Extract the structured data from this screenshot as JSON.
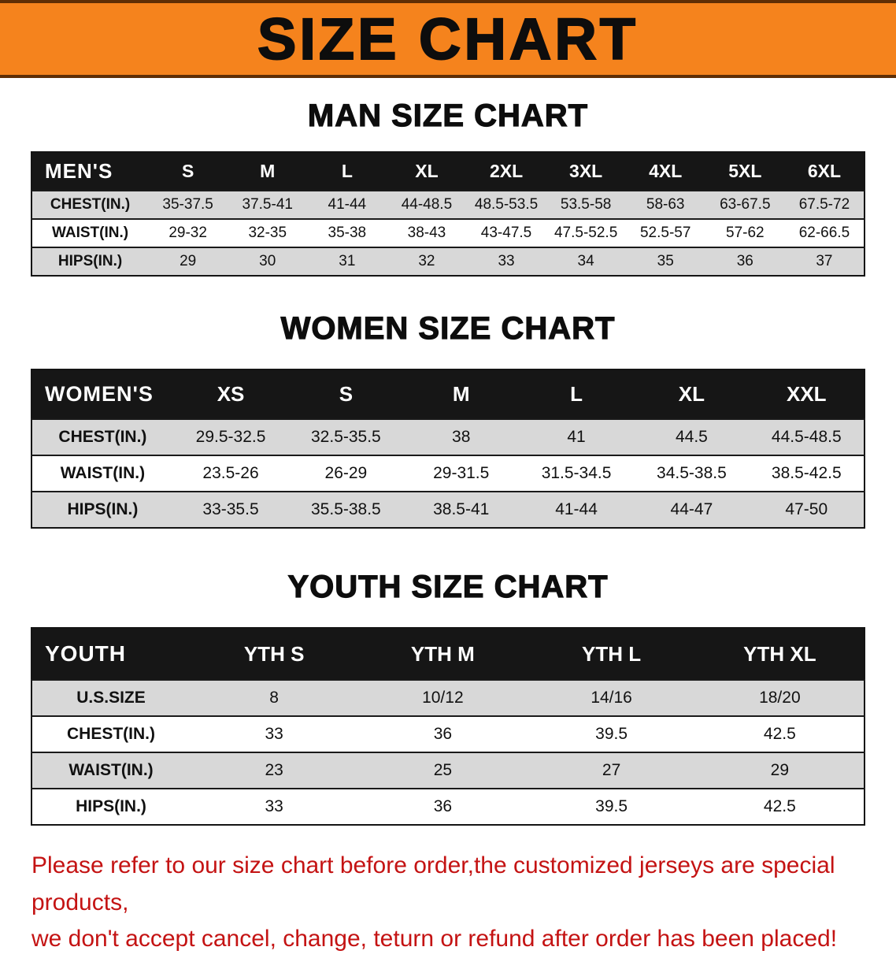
{
  "banner": {
    "title": "SIZE CHART",
    "bg_color": "#F5831D",
    "border_color": "#5f2e05",
    "text_color": "#0d0d0d"
  },
  "sections": [
    {
      "heading": "MAN SIZE CHART",
      "table": {
        "header": [
          "MEN'S",
          "S",
          "M",
          "L",
          "XL",
          "2XL",
          "3XL",
          "4XL",
          "5XL",
          "6XL"
        ],
        "rows": [
          [
            "CHEST(IN.)",
            "35-37.5",
            "37.5-41",
            "41-44",
            "44-48.5",
            "48.5-53.5",
            "53.5-58",
            "58-63",
            "63-67.5",
            "67.5-72"
          ],
          [
            "WAIST(IN.)",
            "29-32",
            "32-35",
            "35-38",
            "38-43",
            "43-47.5",
            "47.5-52.5",
            "52.5-57",
            "57-62",
            "62-66.5"
          ],
          [
            "HIPS(IN.)",
            "29",
            "30",
            "31",
            "32",
            "33",
            "34",
            "35",
            "36",
            "37"
          ]
        ]
      }
    },
    {
      "heading": "WOMEN SIZE CHART",
      "table": {
        "header": [
          "WOMEN'S",
          "XS",
          "S",
          "M",
          "L",
          "XL",
          "XXL"
        ],
        "rows": [
          [
            "CHEST(IN.)",
            "29.5-32.5",
            "32.5-35.5",
            "38",
            "41",
            "44.5",
            "44.5-48.5"
          ],
          [
            "WAIST(IN.)",
            "23.5-26",
            "26-29",
            "29-31.5",
            "31.5-34.5",
            "34.5-38.5",
            "38.5-42.5"
          ],
          [
            "HIPS(IN.)",
            "33-35.5",
            "35.5-38.5",
            "38.5-41",
            "41-44",
            "44-47",
            "47-50"
          ]
        ]
      }
    },
    {
      "heading": "YOUTH SIZE CHART",
      "table": {
        "header": [
          "YOUTH",
          "YTH S",
          "YTH M",
          "YTH L",
          "YTH XL"
        ],
        "rows": [
          [
            "U.S.SIZE",
            "8",
            "10/12",
            "14/16",
            "18/20"
          ],
          [
            "CHEST(IN.)",
            "33",
            "36",
            "39.5",
            "42.5"
          ],
          [
            "WAIST(IN.)",
            "23",
            "25",
            "27",
            "29"
          ],
          [
            "HIPS(IN.)",
            "33",
            "36",
            "39.5",
            "42.5"
          ]
        ]
      }
    }
  ],
  "footer_note": {
    "color": "#c41313",
    "lines": [
      "Please refer to our size chart before order,the customized jerseys are special products,",
      "we don't accept cancel, change, teturn or refund after order has been placed!"
    ]
  }
}
